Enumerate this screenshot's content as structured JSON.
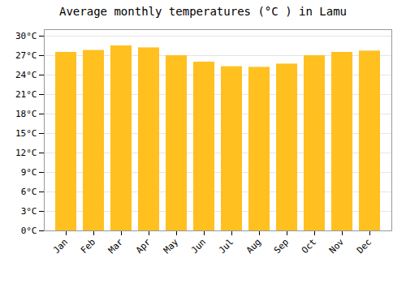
{
  "chart_data": {
    "type": "bar",
    "title": "Average monthly temperatures (°C ) in Lamu",
    "categories": [
      "Jan",
      "Feb",
      "Mar",
      "Apr",
      "May",
      "Jun",
      "Jul",
      "Aug",
      "Sep",
      "Oct",
      "Nov",
      "Dec"
    ],
    "values": [
      27.5,
      27.8,
      28.5,
      28.2,
      27.0,
      26.0,
      25.3,
      25.2,
      25.7,
      27.0,
      27.5,
      27.7
    ],
    "color": "#FFC020",
    "ylim": [
      0,
      31
    ],
    "yticks": [
      {
        "value": 0,
        "label": "0°C"
      },
      {
        "value": 3,
        "label": "3°C"
      },
      {
        "value": 6,
        "label": "6°C"
      },
      {
        "value": 9,
        "label": "9°C"
      },
      {
        "value": 12,
        "label": "12°C"
      },
      {
        "value": 15,
        "label": "15°C"
      },
      {
        "value": 18,
        "label": "18°C"
      },
      {
        "value": 21,
        "label": "21°C"
      },
      {
        "value": 24,
        "label": "24°C"
      },
      {
        "value": 27,
        "label": "27°C"
      },
      {
        "value": 30,
        "label": "30°C"
      }
    ],
    "grid": true
  }
}
